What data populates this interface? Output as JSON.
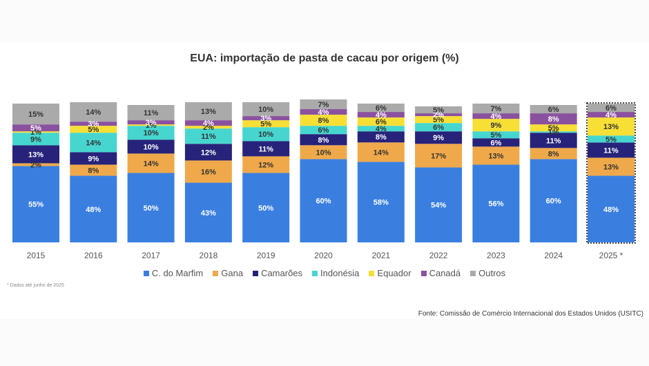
{
  "chart_data": {
    "type": "bar",
    "stacked": true,
    "title": "EUA: importação de pasta de cacau por origem (%)",
    "categories": [
      "2015",
      "2016",
      "2017",
      "2018",
      "2019",
      "2020",
      "2021",
      "2022",
      "2023",
      "2024",
      "2025 *"
    ],
    "highlighted_category": "2025 *",
    "ylim": [
      0,
      100
    ],
    "grid": false,
    "legend_position": "bottom",
    "series": [
      {
        "name": "C. do Marfim",
        "color": "#3a7fe0",
        "values": [
          55,
          48,
          50,
          43,
          50,
          60,
          58,
          54,
          56,
          60,
          48
        ]
      },
      {
        "name": "Gana",
        "color": "#f0a94a",
        "values": [
          2,
          8,
          14,
          16,
          12,
          10,
          14,
          17,
          13,
          8,
          13
        ]
      },
      {
        "name": "Camarões",
        "color": "#27237a",
        "values": [
          13,
          9,
          10,
          12,
          11,
          8,
          8,
          9,
          6,
          11,
          11
        ]
      },
      {
        "name": "Indonésia",
        "color": "#46d6cf",
        "values": [
          9,
          14,
          10,
          11,
          10,
          6,
          4,
          6,
          5,
          1,
          5
        ]
      },
      {
        "name": "Equador",
        "color": "#f7df35",
        "values": [
          1,
          5,
          1,
          2,
          5,
          8,
          6,
          5,
          9,
          5,
          13
        ]
      },
      {
        "name": "Canadá",
        "color": "#8a529e",
        "values": [
          5,
          3,
          3,
          4,
          3,
          4,
          4,
          2,
          4,
          8,
          4
        ]
      },
      {
        "name": "Outros",
        "color": "#aaaaaa",
        "values": [
          15,
          14,
          11,
          13,
          10,
          7,
          6,
          5,
          7,
          6,
          6
        ]
      }
    ]
  },
  "footnote": "* Dados até junho de 2025",
  "source": "Fonte: Comissão de Comércio Internacional dos Estados Unidos (USITC)"
}
